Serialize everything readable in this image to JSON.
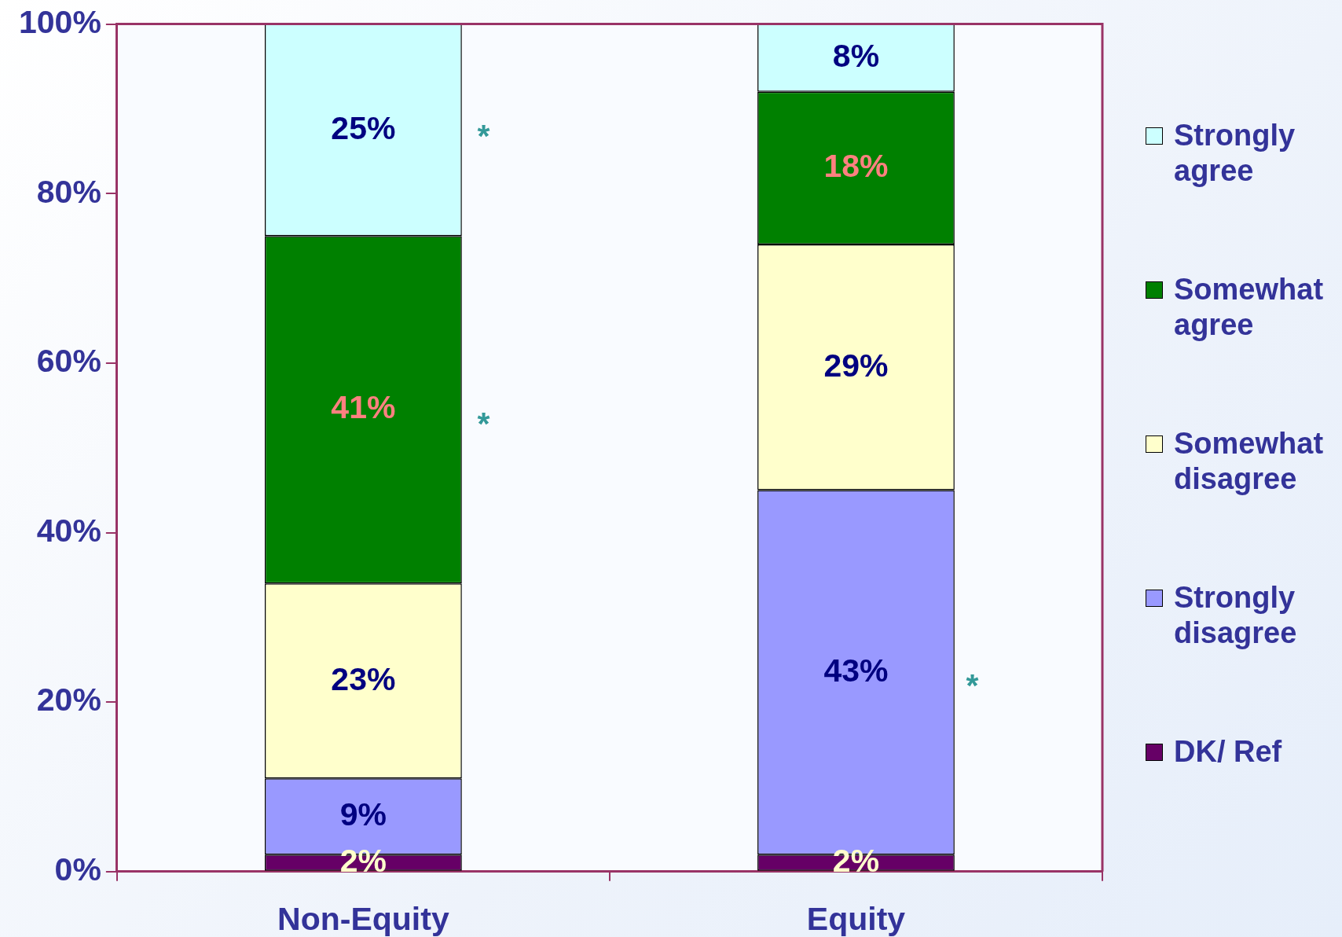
{
  "chart_data": {
    "type": "bar",
    "stacked": true,
    "categories": [
      "Non-Equity",
      "Equity"
    ],
    "series": [
      {
        "name": "DK/ Ref",
        "color": "#660066",
        "values": [
          2,
          2
        ],
        "value_labels": [
          "2%",
          "2%"
        ]
      },
      {
        "name": "Strongly disagree",
        "color": "#9999ff",
        "values": [
          9,
          43
        ],
        "value_labels": [
          "9%",
          "43%"
        ]
      },
      {
        "name": "Somewhat disagree",
        "color": "#ffffcc",
        "values": [
          23,
          29
        ],
        "value_labels": [
          "23%",
          "29%"
        ]
      },
      {
        "name": "Somewhat agree",
        "color": "#008000",
        "values": [
          41,
          18
        ],
        "value_labels": [
          "41%",
          "18%"
        ]
      },
      {
        "name": "Strongly agree",
        "color": "#ccffff",
        "values": [
          25,
          8
        ],
        "value_labels": [
          "25%",
          "8%"
        ]
      }
    ],
    "ylim": [
      0,
      100
    ],
    "yticks": [
      {
        "value": 0,
        "label": "0%"
      },
      {
        "value": 20,
        "label": "20%"
      },
      {
        "value": 40,
        "label": "40%"
      },
      {
        "value": 60,
        "label": "60%"
      },
      {
        "value": 80,
        "label": "80%"
      },
      {
        "value": 100,
        "label": "100%"
      }
    ],
    "grid": false,
    "legend": "right",
    "annotations": [
      "*",
      "*",
      "*"
    ]
  }
}
